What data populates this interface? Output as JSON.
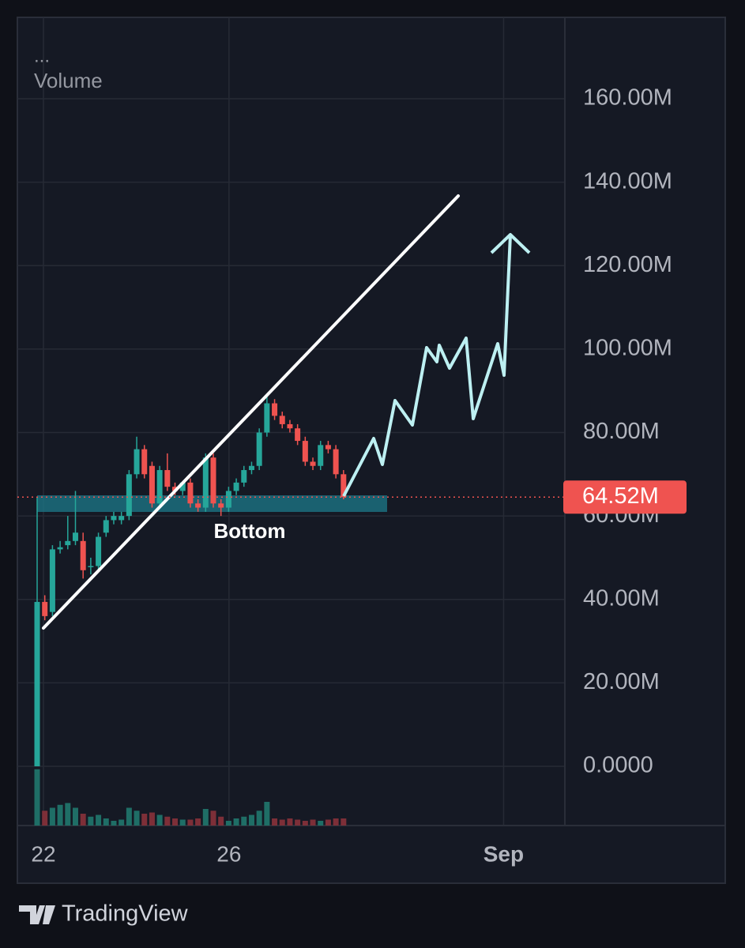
{
  "chart_data": {
    "type": "candlestick",
    "menu": "...",
    "panel_label": "Volume",
    "annotation": "Bottom",
    "brand": "TradingView",
    "open": [
      0,
      39.4,
      37,
      52,
      53,
      54,
      54,
      48,
      48,
      56,
      59,
      59,
      60,
      70,
      76,
      72,
      63,
      71,
      67,
      66,
      68,
      63,
      62,
      74,
      63,
      62,
      66,
      68,
      71,
      72,
      80,
      87,
      84,
      82,
      81,
      78,
      73,
      72,
      77,
      76,
      70
    ],
    "high": [
      64.5,
      41,
      53,
      54,
      60,
      66,
      56,
      50,
      56,
      60,
      61,
      61,
      71,
      79,
      77,
      73,
      72,
      75,
      68,
      67,
      69,
      64,
      75,
      75,
      64,
      67,
      69,
      72,
      73,
      81,
      89,
      88,
      85,
      83,
      82,
      79,
      74,
      78,
      78,
      77,
      71
    ],
    "low": [
      0,
      35,
      36,
      51,
      52,
      53,
      45,
      46,
      47,
      55,
      58,
      58,
      59,
      69,
      69,
      62,
      62,
      66,
      65,
      65,
      62,
      61,
      61,
      62,
      60,
      61,
      65,
      67,
      70,
      71,
      79,
      83,
      81,
      80,
      77,
      72,
      71,
      71,
      75,
      69,
      64
    ],
    "close": [
      39.4,
      36,
      52,
      52.5,
      54,
      56,
      47,
      48,
      55,
      59,
      60,
      60,
      70,
      76,
      70,
      63,
      71,
      67,
      66,
      68,
      63,
      62,
      74,
      63,
      62,
      66,
      68,
      71,
      72,
      80,
      87,
      84,
      82,
      81,
      78,
      73,
      72,
      77,
      76,
      70,
      64.52
    ],
    "volume": [
      95,
      25,
      30,
      35,
      38,
      30,
      20,
      15,
      18,
      12,
      8,
      10,
      30,
      25,
      20,
      22,
      18,
      15,
      12,
      10,
      10,
      12,
      28,
      25,
      15,
      8,
      12,
      15,
      18,
      25,
      40,
      12,
      10,
      12,
      10,
      8,
      10,
      8,
      10,
      12,
      12
    ],
    "volume_lim": [
      0,
      100
    ],
    "up_color": "#26a69a",
    "down_color": "#ef5350",
    "up_volume_color": "#1f6e66",
    "down_volume_color": "#7d2f38",
    "last_price": {
      "value": 64.52,
      "label": "64.52M"
    },
    "ylim": [
      -14.2,
      179.5
    ],
    "yticks": [
      {
        "value": 0,
        "label": "0.0000"
      },
      {
        "value": 20,
        "label": "20.00M"
      },
      {
        "value": 40,
        "label": "40.00M"
      },
      {
        "value": 60,
        "label": "60.00M"
      },
      {
        "value": 80,
        "label": "80.00M"
      },
      {
        "value": 100,
        "label": "100.00M"
      },
      {
        "value": 120,
        "label": "120.00M"
      },
      {
        "value": 140,
        "label": "140.00M"
      },
      {
        "value": 160,
        "label": "160.00M"
      }
    ],
    "xlim": [
      -2.58,
      68.9
    ],
    "xticks": [
      {
        "value": 0.82,
        "label": "22"
      },
      {
        "value": 25.05,
        "label": "26"
      },
      {
        "value": 60.9,
        "label": "Sep"
      }
    ],
    "grid": true
  }
}
